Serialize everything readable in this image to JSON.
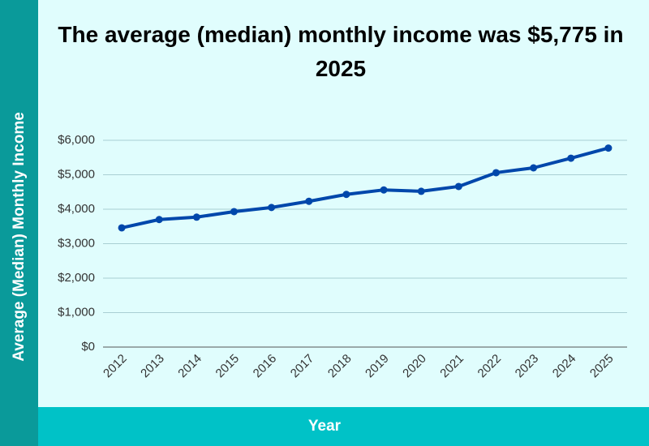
{
  "chart_data": {
    "type": "line",
    "title": "The average (median) monthly income was $5,775 in 2025",
    "x_label": "Year",
    "y_label": "Average (Median) Monthly Income",
    "categories": [
      "2012",
      "2013",
      "2014",
      "2015",
      "2016",
      "2017",
      "2018",
      "2019",
      "2020",
      "2021",
      "2022",
      "2023",
      "2024",
      "2025"
    ],
    "values": [
      3460,
      3700,
      3770,
      3930,
      4050,
      4230,
      4430,
      4560,
      4520,
      4660,
      5060,
      5200,
      5480,
      5775
    ],
    "color": "#0047ab",
    "ylim": [
      0,
      6000
    ],
    "yticks": [
      {
        "value": 0,
        "label": "$0"
      },
      {
        "value": 1000,
        "label": "$1,000"
      },
      {
        "value": 2000,
        "label": "$2,000"
      },
      {
        "value": 3000,
        "label": "$3,000"
      },
      {
        "value": 4000,
        "label": "$4,000"
      },
      {
        "value": 5000,
        "label": "$5,000"
      },
      {
        "value": 6000,
        "label": "$6,000"
      }
    ],
    "grid": true
  }
}
